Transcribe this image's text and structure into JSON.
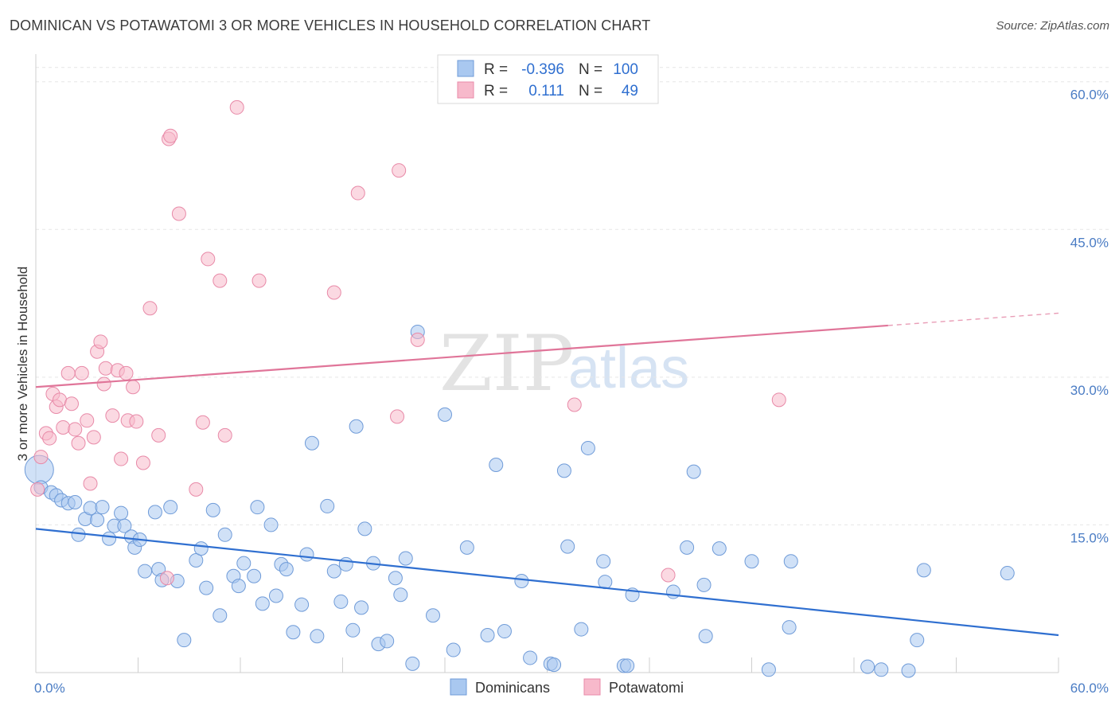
{
  "title": "DOMINICAN VS POTAWATOMI 3 OR MORE VEHICLES IN HOUSEHOLD CORRELATION CHART",
  "source": "Source: ZipAtlas.com",
  "watermark": {
    "zip": "ZIP",
    "atlas": "atlas"
  },
  "legend": {
    "rows": [
      {
        "r_label": "R =",
        "r_value": "-0.396",
        "n_label": "N =",
        "n_value": "100",
        "color": "#a9c8f0",
        "stroke": "#6f9bd8"
      },
      {
        "r_label": "R =",
        "r_value": "0.111",
        "n_label": "N =",
        "n_value": "49",
        "color": "#f7b9cb",
        "stroke": "#e88aa8"
      }
    ]
  },
  "bottom_legend": [
    {
      "label": "Dominicans",
      "color": "#a9c8f0",
      "stroke": "#6f9bd8"
    },
    {
      "label": "Potawatomi",
      "color": "#f7b9cb",
      "stroke": "#e88aa8"
    }
  ],
  "chart_data": {
    "type": "scatter",
    "ylabel": "3 or more Vehicles in Household",
    "xlim": [
      0,
      60
    ],
    "ylim": [
      0,
      62
    ],
    "x_tick_labels": [
      "0.0%",
      "60.0%"
    ],
    "y_ticks": [
      15,
      30,
      45,
      60
    ],
    "y_tick_labels": [
      "15.0%",
      "30.0%",
      "45.0%",
      "60.0%"
    ],
    "grid": true,
    "series": [
      {
        "name": "Dominicans",
        "color": "#a9c8f0",
        "stroke": "#6f9bd8",
        "trend": {
          "x": [
            0,
            60
          ],
          "y": [
            14.6,
            3.8
          ],
          "color": "#2f6fd0",
          "solid_to": 60
        },
        "points": [
          [
            0.2,
            20.6
          ],
          [
            0.3,
            18.8
          ],
          [
            0.9,
            18.3
          ],
          [
            1.2,
            18.0
          ],
          [
            1.5,
            17.5
          ],
          [
            1.9,
            17.2
          ],
          [
            2.3,
            17.3
          ],
          [
            2.5,
            14.0
          ],
          [
            2.9,
            15.6
          ],
          [
            3.2,
            16.7
          ],
          [
            3.6,
            15.5
          ],
          [
            3.9,
            16.8
          ],
          [
            4.3,
            13.6
          ],
          [
            4.6,
            14.9
          ],
          [
            5.0,
            16.2
          ],
          [
            5.2,
            14.9
          ],
          [
            5.6,
            13.8
          ],
          [
            5.8,
            12.7
          ],
          [
            6.1,
            13.5
          ],
          [
            6.4,
            10.3
          ],
          [
            7.0,
            16.3
          ],
          [
            7.2,
            10.5
          ],
          [
            7.4,
            9.4
          ],
          [
            7.9,
            16.8
          ],
          [
            8.3,
            9.3
          ],
          [
            8.7,
            3.3
          ],
          [
            9.4,
            11.4
          ],
          [
            9.7,
            12.6
          ],
          [
            10.0,
            8.6
          ],
          [
            10.4,
            16.5
          ],
          [
            10.8,
            5.8
          ],
          [
            11.1,
            14.0
          ],
          [
            11.6,
            9.8
          ],
          [
            11.9,
            8.8
          ],
          [
            12.2,
            11.1
          ],
          [
            12.8,
            9.8
          ],
          [
            13.0,
            16.8
          ],
          [
            13.3,
            7.0
          ],
          [
            13.8,
            15.0
          ],
          [
            14.1,
            7.8
          ],
          [
            14.4,
            11.0
          ],
          [
            14.7,
            10.5
          ],
          [
            15.1,
            4.1
          ],
          [
            15.6,
            6.9
          ],
          [
            15.9,
            12.0
          ],
          [
            16.2,
            23.3
          ],
          [
            16.5,
            3.7
          ],
          [
            17.1,
            16.9
          ],
          [
            17.5,
            10.3
          ],
          [
            17.9,
            7.2
          ],
          [
            18.2,
            11.0
          ],
          [
            18.6,
            4.3
          ],
          [
            18.8,
            25.0
          ],
          [
            19.1,
            6.6
          ],
          [
            19.3,
            14.6
          ],
          [
            19.8,
            11.1
          ],
          [
            20.1,
            2.9
          ],
          [
            20.6,
            3.2
          ],
          [
            21.1,
            9.6
          ],
          [
            21.4,
            7.9
          ],
          [
            21.7,
            11.6
          ],
          [
            22.1,
            0.9
          ],
          [
            22.4,
            34.6
          ],
          [
            23.3,
            5.8
          ],
          [
            24.0,
            26.2
          ],
          [
            24.5,
            2.3
          ],
          [
            25.3,
            12.7
          ],
          [
            26.5,
            3.8
          ],
          [
            27.0,
            21.1
          ],
          [
            27.5,
            4.2
          ],
          [
            28.5,
            9.3
          ],
          [
            29.0,
            1.5
          ],
          [
            30.2,
            0.9
          ],
          [
            30.4,
            0.8
          ],
          [
            31.0,
            20.5
          ],
          [
            31.2,
            12.8
          ],
          [
            32.0,
            4.4
          ],
          [
            32.4,
            22.8
          ],
          [
            33.3,
            11.3
          ],
          [
            33.4,
            9.2
          ],
          [
            34.5,
            0.7
          ],
          [
            34.7,
            0.7
          ],
          [
            35.0,
            7.9
          ],
          [
            37.4,
            8.2
          ],
          [
            38.2,
            12.7
          ],
          [
            38.6,
            20.4
          ],
          [
            39.2,
            8.9
          ],
          [
            39.3,
            3.7
          ],
          [
            40.1,
            12.6
          ],
          [
            42.0,
            11.3
          ],
          [
            43.0,
            0.3
          ],
          [
            44.2,
            4.6
          ],
          [
            44.3,
            11.3
          ],
          [
            48.8,
            0.6
          ],
          [
            49.6,
            0.3
          ],
          [
            51.2,
            0.2
          ],
          [
            51.7,
            3.3
          ],
          [
            52.1,
            10.4
          ],
          [
            57.0,
            10.1
          ]
        ]
      },
      {
        "name": "Potawatomi",
        "color": "#f7b9cb",
        "stroke": "#e88aa8",
        "trend": {
          "x": [
            0,
            60
          ],
          "y": [
            29.0,
            36.5
          ],
          "color": "#e07599",
          "solid_to": 50
        },
        "points": [
          [
            0.1,
            18.6
          ],
          [
            0.3,
            21.9
          ],
          [
            0.6,
            24.3
          ],
          [
            0.8,
            23.8
          ],
          [
            1.0,
            28.3
          ],
          [
            1.2,
            27.0
          ],
          [
            1.4,
            27.7
          ],
          [
            1.6,
            24.9
          ],
          [
            1.9,
            30.4
          ],
          [
            2.1,
            27.3
          ],
          [
            2.3,
            24.7
          ],
          [
            2.5,
            23.3
          ],
          [
            2.7,
            30.4
          ],
          [
            3.0,
            25.6
          ],
          [
            3.2,
            19.2
          ],
          [
            3.4,
            23.9
          ],
          [
            3.6,
            32.6
          ],
          [
            3.8,
            33.6
          ],
          [
            4.0,
            29.3
          ],
          [
            4.1,
            30.9
          ],
          [
            4.5,
            26.1
          ],
          [
            4.8,
            30.7
          ],
          [
            5.0,
            21.7
          ],
          [
            5.3,
            30.4
          ],
          [
            5.4,
            25.6
          ],
          [
            5.7,
            29.0
          ],
          [
            5.9,
            25.5
          ],
          [
            6.3,
            21.3
          ],
          [
            6.7,
            37.0
          ],
          [
            7.2,
            24.1
          ],
          [
            7.7,
            9.6
          ],
          [
            7.8,
            54.2
          ],
          [
            7.9,
            54.5
          ],
          [
            8.4,
            46.6
          ],
          [
            9.4,
            18.6
          ],
          [
            9.8,
            25.4
          ],
          [
            10.1,
            42.0
          ],
          [
            10.8,
            39.8
          ],
          [
            11.1,
            24.1
          ],
          [
            11.8,
            57.4
          ],
          [
            13.1,
            39.8
          ],
          [
            17.5,
            38.6
          ],
          [
            18.9,
            48.7
          ],
          [
            21.2,
            26.0
          ],
          [
            21.3,
            51.0
          ],
          [
            22.4,
            33.8
          ],
          [
            31.6,
            27.2
          ],
          [
            37.1,
            9.9
          ],
          [
            43.6,
            27.7
          ]
        ]
      }
    ]
  }
}
